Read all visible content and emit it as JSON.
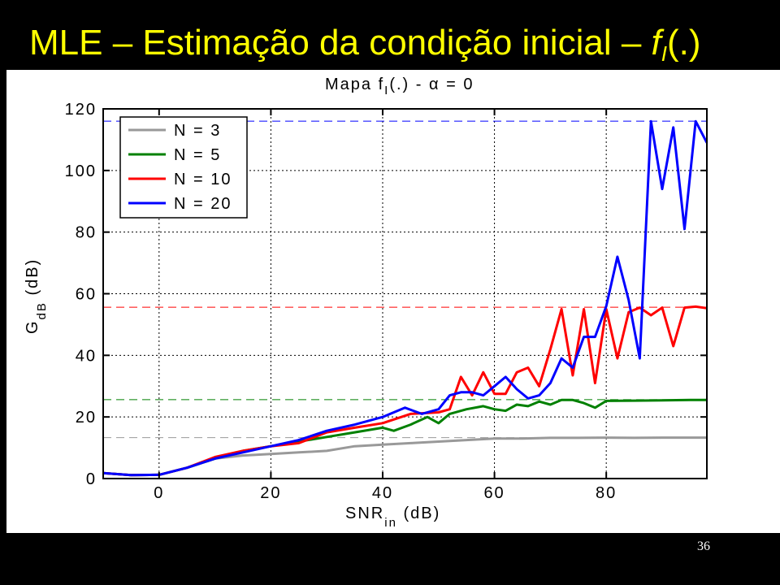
{
  "slide": {
    "title_prefix": "MLE – Estimação da condição inicial – ",
    "title_f": "f",
    "title_sub": "I",
    "title_suffix": "(.)",
    "page_number": "36"
  },
  "colors": {
    "background": "#000000",
    "title": "#FFFF00",
    "N3": "#999999",
    "N5": "#008000",
    "N10": "#FF0000",
    "N20": "#0000FF"
  },
  "chart_data": {
    "type": "line",
    "title_parts": {
      "pre": "Mapa f",
      "sub": "I",
      "post": "(.) - α = 0"
    },
    "xlabel_parts": {
      "main": "SNR",
      "sub": "in",
      "post": " (dB)"
    },
    "ylabel_parts": {
      "main": "G",
      "sub": "dB",
      "post": " (dB)"
    },
    "xlim": [
      -10,
      98
    ],
    "ylim": [
      0,
      120
    ],
    "xticks": [
      0,
      20,
      40,
      60,
      80
    ],
    "xtick_labels": [
      "0",
      "20",
      "40",
      "60",
      "80"
    ],
    "yticks": [
      0,
      20,
      40,
      60,
      80,
      100,
      120
    ],
    "ytick_labels": [
      "0",
      "20",
      "40",
      "60",
      "80",
      "100",
      "120"
    ],
    "grid": true,
    "legend_position": "top-left",
    "reference_lines": [
      {
        "series": "N = 3",
        "y": 13.3
      },
      {
        "series": "N = 5",
        "y": 25.6
      },
      {
        "series": "N = 10",
        "y": 55.6
      },
      {
        "series": "N = 20",
        "y": 116
      }
    ],
    "series": [
      {
        "name": "N = 3",
        "x": [
          -10,
          -5,
          0,
          5,
          10,
          15,
          20,
          25,
          30,
          35,
          40,
          45,
          50,
          55,
          60,
          65,
          70,
          75,
          80,
          85,
          90,
          95,
          98
        ],
        "y": [
          1.8,
          1.1,
          1.2,
          3.5,
          6.5,
          7.5,
          8,
          8.5,
          9,
          10.5,
          11,
          11.5,
          12,
          12.5,
          13,
          13,
          13.2,
          13.2,
          13.3,
          13.2,
          13.3,
          13.3,
          13.3
        ]
      },
      {
        "name": "N = 5",
        "x": [
          -10,
          -5,
          0,
          5,
          10,
          15,
          20,
          25,
          30,
          35,
          40,
          42,
          45,
          48,
          50,
          52,
          55,
          58,
          60,
          62,
          64,
          66,
          68,
          70,
          72,
          74,
          76,
          78,
          80,
          85,
          90,
          95,
          98
        ],
        "y": [
          1.8,
          1.1,
          1.2,
          3.5,
          6.5,
          9,
          10.5,
          12,
          13.5,
          15,
          16.5,
          15.5,
          17.5,
          20,
          18,
          21,
          22.5,
          23.5,
          22.5,
          22,
          24,
          23.5,
          25,
          24,
          25.5,
          25.5,
          24.5,
          23,
          25.2,
          25.3,
          25.4,
          25.5,
          25.5
        ]
      },
      {
        "name": "N = 10",
        "x": [
          -10,
          -5,
          0,
          5,
          10,
          15,
          20,
          25,
          30,
          35,
          40,
          45,
          50,
          52,
          54,
          56,
          58,
          60,
          62,
          64,
          66,
          68,
          70,
          72,
          74,
          76,
          78,
          80,
          82,
          84,
          86,
          88,
          90,
          92,
          94,
          96,
          98
        ],
        "y": [
          1.8,
          1.1,
          1.2,
          3.5,
          7,
          9,
          10.5,
          11.5,
          15,
          16.5,
          18,
          21,
          21.5,
          22.5,
          33,
          27,
          34.5,
          27.5,
          27.5,
          34.5,
          36,
          30,
          42,
          55,
          33.5,
          55,
          31,
          55,
          39,
          54,
          55.5,
          53,
          55.5,
          43,
          55.5,
          55.8,
          55.3
        ]
      },
      {
        "name": "N = 20",
        "x": [
          -10,
          -5,
          0,
          5,
          10,
          15,
          20,
          25,
          30,
          35,
          40,
          44,
          47,
          50,
          52,
          54,
          56,
          58,
          60,
          62,
          64,
          66,
          68,
          70,
          72,
          74,
          76,
          78,
          80,
          82,
          84,
          86,
          88,
          90,
          92,
          94,
          96,
          98
        ],
        "y": [
          1.8,
          1.1,
          1.2,
          3.5,
          6.5,
          8.5,
          10.5,
          12.5,
          15.5,
          17.5,
          20,
          23,
          21,
          22.5,
          27,
          28,
          28,
          27,
          30,
          33,
          29,
          26,
          27,
          31,
          39,
          36,
          46,
          46,
          56,
          72,
          58,
          39,
          116,
          94,
          114,
          81,
          116,
          109
        ]
      }
    ]
  }
}
